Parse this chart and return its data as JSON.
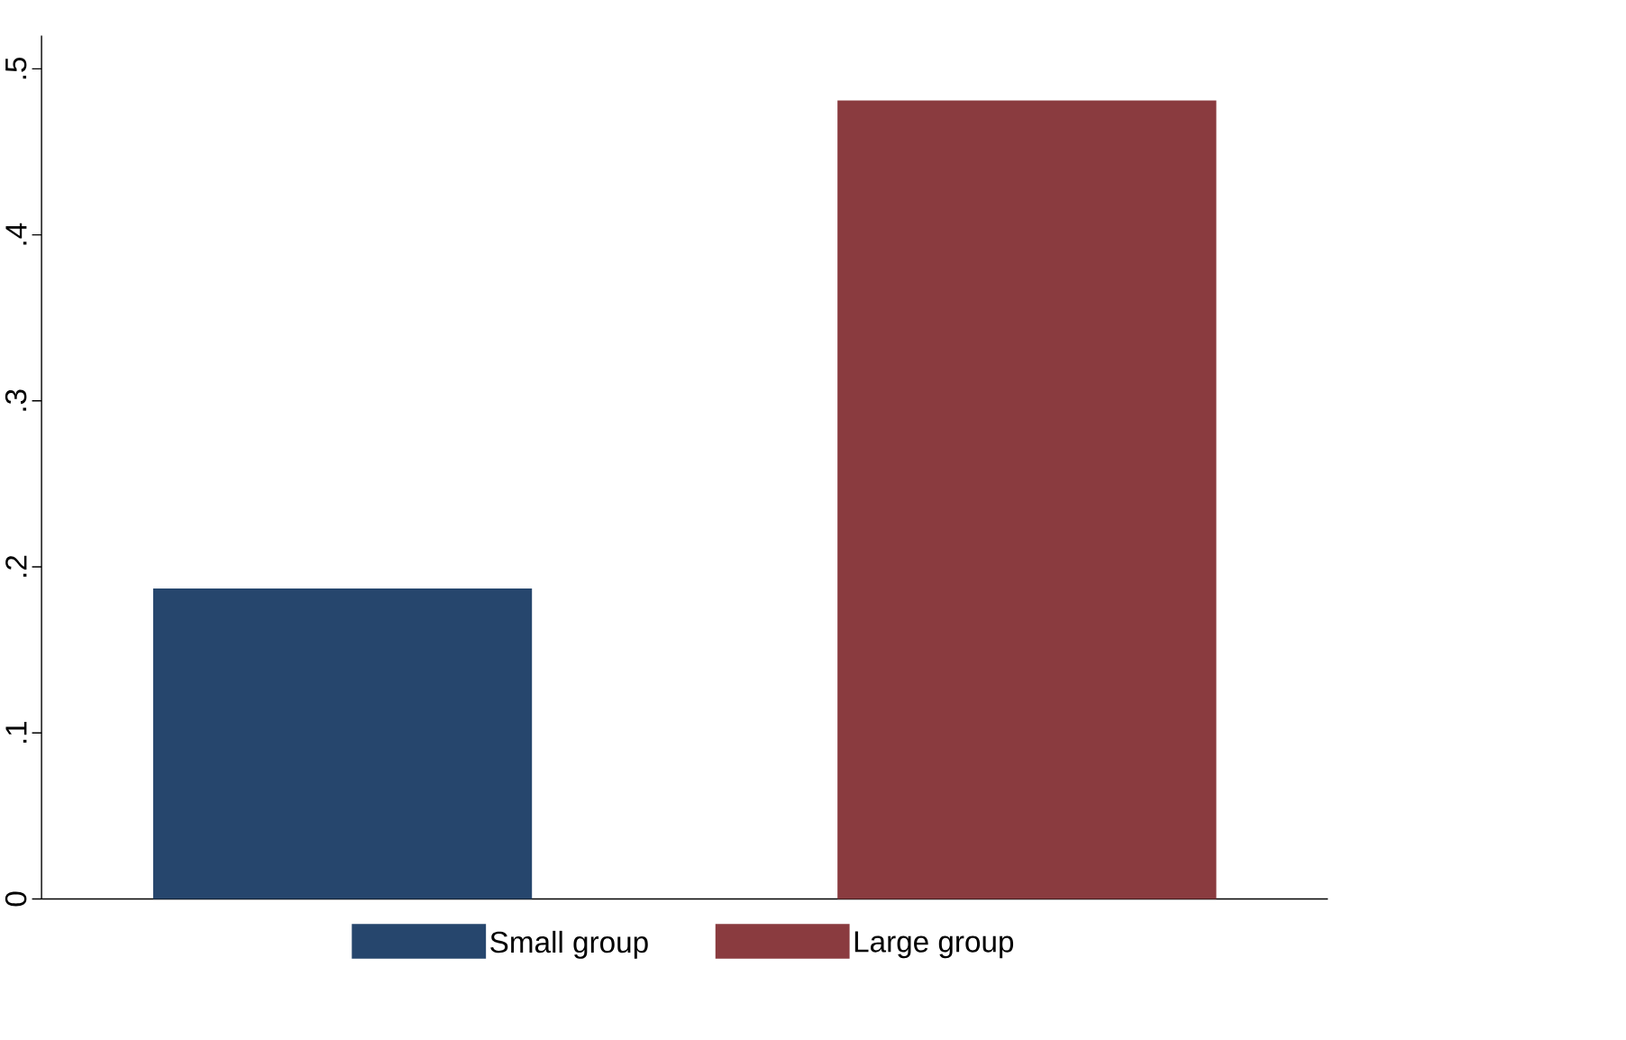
{
  "chart_data": {
    "type": "bar",
    "categories": [
      null
    ],
    "series": [
      {
        "name": "Small group",
        "color": "#26466d",
        "values": [
          0.187
        ]
      },
      {
        "name": "Large group",
        "color": "#8a3b3f",
        "values": [
          0.481
        ]
      }
    ],
    "ylim": [
      0,
      0.52
    ],
    "yticks": [
      0,
      {
        "value": 0.1,
        "label": ".1"
      },
      {
        "value": 0.2,
        "label": ".2"
      },
      {
        "value": 0.3,
        "label": ".3"
      },
      {
        "value": 0.4,
        "label": ".4"
      },
      {
        "value": 0.5,
        "label": ".5"
      }
    ],
    "legend": "bottom"
  }
}
